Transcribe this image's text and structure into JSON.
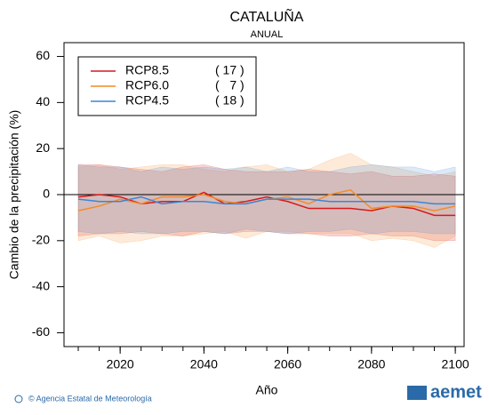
{
  "chart_data": {
    "type": "line",
    "title": "CATALUÑA",
    "subtitle": "ANUAL",
    "ylabel": "Cambio de la precipitación (%)",
    "xlabel": "Año",
    "x": [
      2010,
      2015,
      2020,
      2025,
      2030,
      2035,
      2040,
      2045,
      2050,
      2055,
      2060,
      2065,
      2070,
      2075,
      2080,
      2085,
      2090,
      2095,
      2100
    ],
    "series": [
      {
        "name": "RCP8.5",
        "legend_note": "( 17 )",
        "color": "#d7191c",
        "values": [
          -1,
          0,
          -1,
          -4,
          -3,
          -3,
          1,
          -4,
          -3,
          -1,
          -3,
          -6,
          -6,
          -6,
          -7,
          -5,
          -6,
          -9,
          -9
        ],
        "upper": [
          13,
          13,
          12,
          11,
          10,
          12,
          13,
          11,
          10,
          10,
          10,
          11,
          10,
          9,
          10,
          8,
          8,
          9,
          8
        ],
        "lower": [
          -18,
          -17,
          -17,
          -16,
          -17,
          -18,
          -16,
          -17,
          -16,
          -16,
          -17,
          -17,
          -18,
          -18,
          -17,
          -18,
          -18,
          -20,
          -20
        ]
      },
      {
        "name": "RCP6.0",
        "legend_note": "(   7 )",
        "color": "#f28c28",
        "values": [
          -7,
          -5,
          -2,
          -4,
          -1,
          -1,
          0,
          -3,
          -4,
          -2,
          -1,
          -4,
          0,
          2,
          -6,
          -5,
          -5,
          -7,
          -5
        ],
        "upper": [
          12,
          13,
          11,
          12,
          13,
          13,
          11,
          10,
          12,
          13,
          10,
          11,
          15,
          18,
          13,
          12,
          10,
          8,
          10
        ],
        "lower": [
          -20,
          -18,
          -21,
          -20,
          -18,
          -18,
          -17,
          -16,
          -19,
          -16,
          -16,
          -17,
          -17,
          -17,
          -20,
          -19,
          -20,
          -23,
          -18
        ]
      },
      {
        "name": "RCP4.5",
        "legend_note": "( 18 )",
        "color": "#3a86d6",
        "values": [
          -2,
          -3,
          -3,
          -1,
          -4,
          -3,
          -3,
          -4,
          -4,
          -2,
          -2,
          -2,
          -3,
          -3,
          -3,
          -3,
          -3,
          -4,
          -4
        ],
        "upper": [
          13,
          12,
          12,
          10,
          12,
          11,
          12,
          11,
          12,
          10,
          12,
          10,
          10,
          12,
          13,
          12,
          12,
          10,
          12
        ],
        "lower": [
          -16,
          -17,
          -16,
          -17,
          -17,
          -16,
          -16,
          -17,
          -15,
          -16,
          -17,
          -16,
          -16,
          -15,
          -17,
          -16,
          -16,
          -17,
          -17
        ]
      }
    ],
    "xlim": [
      2006.6,
      2102.1
    ],
    "xticks": [
      2020,
      2040,
      2060,
      2080,
      2100
    ],
    "ylim": [
      -66,
      66
    ],
    "yticks": [
      -60,
      -40,
      -20,
      0,
      20,
      40,
      60
    ],
    "zero_line": true,
    "footer": "© Agencia Estatal de Meteorología",
    "logo": "aemet"
  }
}
